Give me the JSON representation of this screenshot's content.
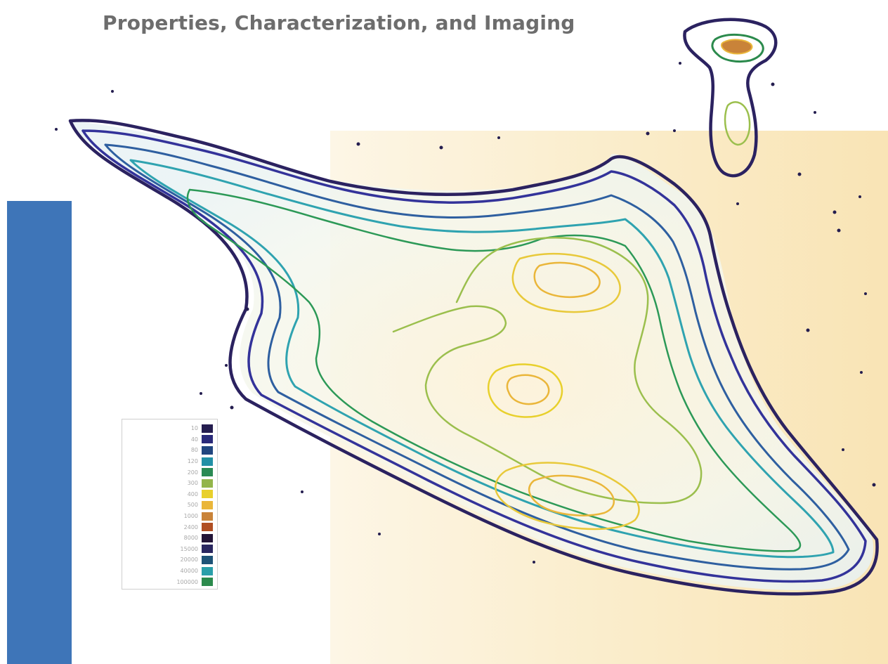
{
  "title": "Properties, Characterization, and Imaging",
  "legend": [
    {
      "label": "10",
      "color": "#241d4f"
    },
    {
      "label": "40",
      "color": "#2a2a7a"
    },
    {
      "label": "80",
      "color": "#21467f"
    },
    {
      "label": "120",
      "color": "#2290a6"
    },
    {
      "label": "200",
      "color": "#2a8a54"
    },
    {
      "label": "300",
      "color": "#93b54a"
    },
    {
      "label": "400",
      "color": "#e8d02c"
    },
    {
      "label": "500",
      "color": "#eab63a"
    },
    {
      "label": "1000",
      "color": "#c98339"
    },
    {
      "label": "2400",
      "color": "#b04f23"
    },
    {
      "label": "8000",
      "color": "#221437"
    },
    {
      "label": "15000",
      "color": "#29265f"
    },
    {
      "label": "20000",
      "color": "#1e5377"
    },
    {
      "label": "40000",
      "color": "#2a9fa9"
    },
    {
      "label": "100000",
      "color": "#2b8a4c"
    }
  ],
  "colors": {
    "left_bar": "#3e75b8",
    "background_panel": "#faecc9"
  }
}
